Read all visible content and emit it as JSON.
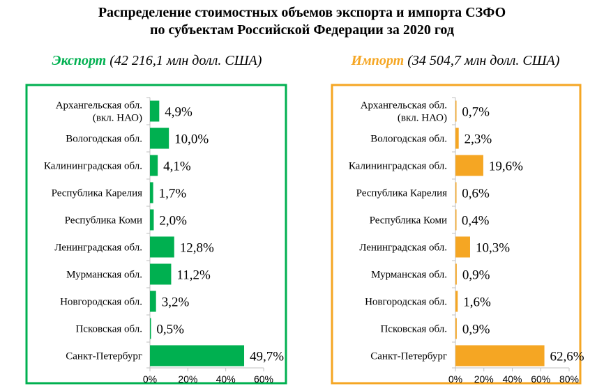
{
  "title_lines": [
    "Распределение стоимостных объемов  экспорта  и  импорта СЗФО",
    "по  субъектам  Российской  Федерации за 2020 год"
  ],
  "chart_data": [
    {
      "type": "bar",
      "orientation": "horizontal",
      "heading_key": "Экспорт",
      "heading_rest": "(42 216,1 млн  долл. США)",
      "color": "#00b050",
      "categories": [
        [
          "Архангельская обл.",
          "(вкл. НАО)"
        ],
        [
          "Вологодская обл."
        ],
        [
          "Калининградская обл."
        ],
        [
          "Республика Карелия"
        ],
        [
          "Республика Коми"
        ],
        [
          "Ленинградская обл."
        ],
        [
          "Мурманская обл."
        ],
        [
          "Новгородская обл."
        ],
        [
          "Псковская обл."
        ],
        [
          "Санкт-Петербург"
        ]
      ],
      "values": [
        4.9,
        10.0,
        4.1,
        1.7,
        2.0,
        12.8,
        11.2,
        3.2,
        0.5,
        49.7
      ],
      "value_labels": [
        "4,9%",
        "10,0%",
        "4,1%",
        "1,7%",
        "2,0%",
        "12,8%",
        "11,2%",
        "3,2%",
        "0,5%",
        "49,7%"
      ],
      "xlim": [
        0,
        60
      ],
      "ticks": [
        "0%",
        "20%",
        "40%",
        "60%"
      ]
    },
    {
      "type": "bar",
      "orientation": "horizontal",
      "heading_key": "Импорт",
      "heading_rest": "(34 504,7  млн  долл. США)",
      "color": "#f5a623",
      "categories": [
        [
          "Архангельская обл.",
          "(вкл. НАО)"
        ],
        [
          "Вологодская обл."
        ],
        [
          "Калининградская обл."
        ],
        [
          "Республика Карелия"
        ],
        [
          "Республика Коми"
        ],
        [
          "Ленинградская обл."
        ],
        [
          "Мурманская обл."
        ],
        [
          "Новгородская обл."
        ],
        [
          "Псковская обл."
        ],
        [
          "Санкт-Петербург"
        ]
      ],
      "values": [
        0.7,
        2.3,
        19.6,
        0.6,
        0.4,
        10.3,
        0.9,
        1.6,
        0.9,
        62.6
      ],
      "value_labels": [
        "0,7%",
        "2,3%",
        "19,6%",
        "0,6%",
        "0,4%",
        "10,3%",
        "0,9%",
        "1,6%",
        "0,9%",
        "62,6%"
      ],
      "xlim": [
        0,
        80
      ],
      "ticks": [
        "0%",
        "20%",
        "40%",
        "60%",
        "80%"
      ]
    }
  ]
}
